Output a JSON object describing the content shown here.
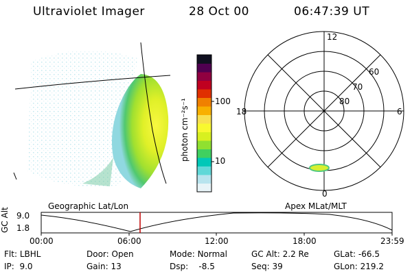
{
  "header": {
    "instrument": "Ultraviolet Imager",
    "date": "28 Oct 00",
    "time": "06:47:39 UT"
  },
  "colorbar": {
    "unit_label": "photon cm⁻²s⁻¹",
    "ticks": [
      "100",
      "10"
    ],
    "colors": [
      "#e8f4f8",
      "#b8e4ee",
      "#60d8d8",
      "#00c8b8",
      "#40d060",
      "#90e030",
      "#d8f020",
      "#f8f830",
      "#f8e050",
      "#f8b000",
      "#f08000",
      "#e03000",
      "#c00020",
      "#900040",
      "#500050",
      "#101020"
    ]
  },
  "panels": {
    "left_caption": "Geographic Lat/Lon",
    "right_caption": "Apex MLat/MLT"
  },
  "polar_plot": {
    "mlt_labels": {
      "top": "12",
      "left": "18",
      "right": "6",
      "bottom": "0"
    },
    "lat_labels": [
      "60",
      "70",
      "80"
    ]
  },
  "timeline": {
    "ylabel": "GC Alt",
    "yticks": [
      "9.0",
      "1.8"
    ],
    "xticks": [
      "00:00",
      "06:00",
      "12:00",
      "18:00",
      "23:59"
    ],
    "marker_color": "#c00000"
  },
  "info": {
    "row1": [
      {
        "label": "Flt:",
        "value": "LBHL"
      },
      {
        "label": "Door:",
        "value": "Open"
      },
      {
        "label": "Mode:",
        "value": "Normal"
      },
      {
        "label": "GC Alt:",
        "value": "2.2 Re"
      },
      {
        "label": "GLat:",
        "value": "-66.5"
      }
    ],
    "row2": [
      {
        "label": "IP:",
        "value": "9.0"
      },
      {
        "label": "Gain:",
        "value": "13"
      },
      {
        "label": "Dsp:",
        "value": "-8.5"
      },
      {
        "label": "Seq:",
        "value": "39"
      },
      {
        "label": "GLon:",
        "value": "219.2"
      }
    ]
  }
}
